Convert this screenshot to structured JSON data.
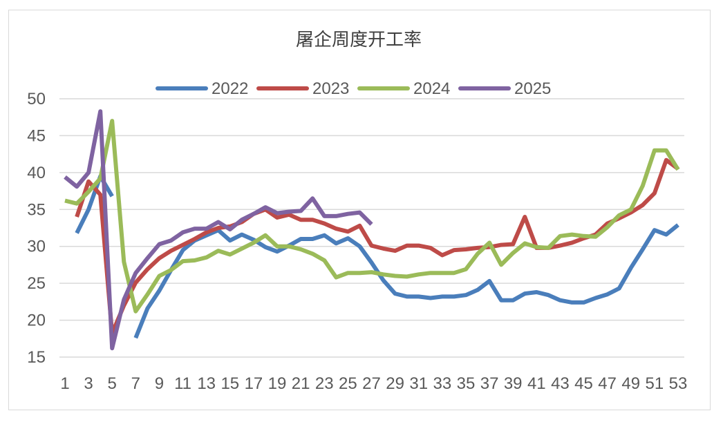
{
  "chart_data": {
    "type": "line",
    "title": "屠企周度开工率",
    "xlabel": "",
    "ylabel": "",
    "ylim": [
      15,
      50
    ],
    "yticks": [
      15,
      20,
      25,
      30,
      35,
      40,
      45,
      50
    ],
    "xlim": [
      1,
      53
    ],
    "xticks": [
      1,
      3,
      5,
      7,
      9,
      11,
      13,
      15,
      17,
      19,
      21,
      23,
      25,
      27,
      29,
      31,
      33,
      35,
      37,
      39,
      41,
      43,
      45,
      47,
      49,
      51,
      53
    ],
    "grid": true,
    "legend": "top",
    "series": [
      {
        "name": "2022",
        "color": "#4a7ebb",
        "x": [
          2,
          3,
          4,
          5,
          null,
          7,
          8,
          9,
          10,
          11,
          12,
          13,
          14,
          15,
          16,
          17,
          18,
          19,
          20,
          21,
          22,
          23,
          24,
          25,
          26,
          27,
          28,
          29,
          30,
          31,
          32,
          33,
          34,
          35,
          36,
          37,
          38,
          39,
          40,
          41,
          42,
          43,
          44,
          45,
          46,
          47,
          48,
          49,
          50,
          51,
          52,
          53
        ],
        "values": [
          31.8,
          35.0,
          39.5,
          36.8,
          null,
          17.6,
          21.6,
          24.0,
          26.8,
          29.5,
          30.8,
          31.5,
          32.2,
          30.8,
          31.6,
          30.9,
          29.9,
          29.3,
          30.1,
          31.0,
          31.0,
          31.5,
          30.4,
          31.1,
          30.0,
          27.8,
          25.4,
          23.6,
          23.2,
          23.2,
          23.0,
          23.2,
          23.2,
          23.4,
          24.1,
          25.3,
          22.7,
          22.7,
          23.6,
          23.8,
          23.4,
          22.7,
          22.4,
          22.4,
          23.0,
          23.5,
          24.3,
          27.1,
          29.6,
          32.2,
          31.6,
          32.9
        ]
      },
      {
        "name": "2023",
        "color": "#be4b48",
        "x": [
          2,
          3,
          4,
          5,
          6,
          7,
          8,
          9,
          10,
          11,
          12,
          13,
          14,
          15,
          16,
          17,
          18,
          19,
          20,
          21,
          22,
          23,
          24,
          25,
          26,
          27,
          28,
          29,
          30,
          31,
          32,
          33,
          34,
          35,
          36,
          37,
          38,
          39,
          40,
          41,
          42,
          43,
          44,
          45,
          46,
          47,
          48,
          49,
          50,
          51,
          52,
          53
        ],
        "values": [
          34.0,
          38.8,
          37.0,
          18.2,
          22.0,
          25.1,
          26.9,
          28.4,
          29.4,
          30.2,
          31.0,
          31.9,
          32.5,
          32.7,
          33.3,
          34.4,
          35.0,
          33.9,
          34.3,
          33.6,
          33.6,
          33.1,
          32.4,
          32.0,
          32.8,
          30.1,
          29.7,
          29.4,
          30.1,
          30.1,
          29.8,
          28.8,
          29.5,
          29.6,
          29.8,
          29.9,
          30.2,
          30.3,
          34.0,
          29.8,
          29.8,
          30.1,
          30.5,
          31.1,
          31.6,
          33.1,
          33.8,
          34.6,
          35.6,
          37.2,
          41.7,
          40.5
        ]
      },
      {
        "name": "2024",
        "color": "#9bbb59",
        "x": [
          1,
          2,
          3,
          4,
          5,
          6,
          7,
          8,
          9,
          10,
          11,
          12,
          13,
          14,
          15,
          16,
          17,
          18,
          19,
          20,
          21,
          22,
          23,
          24,
          25,
          26,
          27,
          28,
          29,
          30,
          31,
          32,
          33,
          34,
          35,
          36,
          37,
          38,
          39,
          40,
          41,
          42,
          43,
          44,
          45,
          46,
          47,
          48,
          49,
          50,
          51,
          52,
          53
        ],
        "values": [
          36.2,
          35.8,
          37.4,
          39.2,
          47.0,
          27.9,
          21.2,
          23.5,
          26.0,
          26.8,
          28.0,
          28.1,
          28.5,
          29.4,
          28.9,
          29.7,
          30.5,
          31.5,
          30.0,
          30.0,
          29.6,
          29.0,
          28.1,
          25.8,
          26.4,
          26.4,
          26.5,
          26.2,
          26.0,
          25.9,
          26.2,
          26.4,
          26.4,
          26.4,
          26.9,
          29.0,
          30.5,
          27.5,
          29.1,
          30.4,
          29.9,
          29.8,
          31.4,
          31.6,
          31.4,
          31.3,
          32.6,
          34.2,
          35.0,
          38.2,
          43.0,
          43.0,
          40.4
        ]
      },
      {
        "name": "2025",
        "color": "#7f63a1",
        "x": [
          1,
          2,
          3,
          4,
          5,
          6,
          7,
          8,
          9,
          10,
          11,
          12,
          13,
          14,
          15,
          16,
          17,
          18,
          19,
          20,
          21,
          22,
          23,
          24,
          25,
          26,
          27
        ],
        "values": [
          39.4,
          38.1,
          40.0,
          48.3,
          16.2,
          22.8,
          26.4,
          28.4,
          30.3,
          30.8,
          31.9,
          32.4,
          32.4,
          33.3,
          32.3,
          33.6,
          34.4,
          35.3,
          34.5,
          34.7,
          34.8,
          36.5,
          34.1,
          34.1,
          34.4,
          34.6,
          33.0
        ]
      }
    ]
  }
}
